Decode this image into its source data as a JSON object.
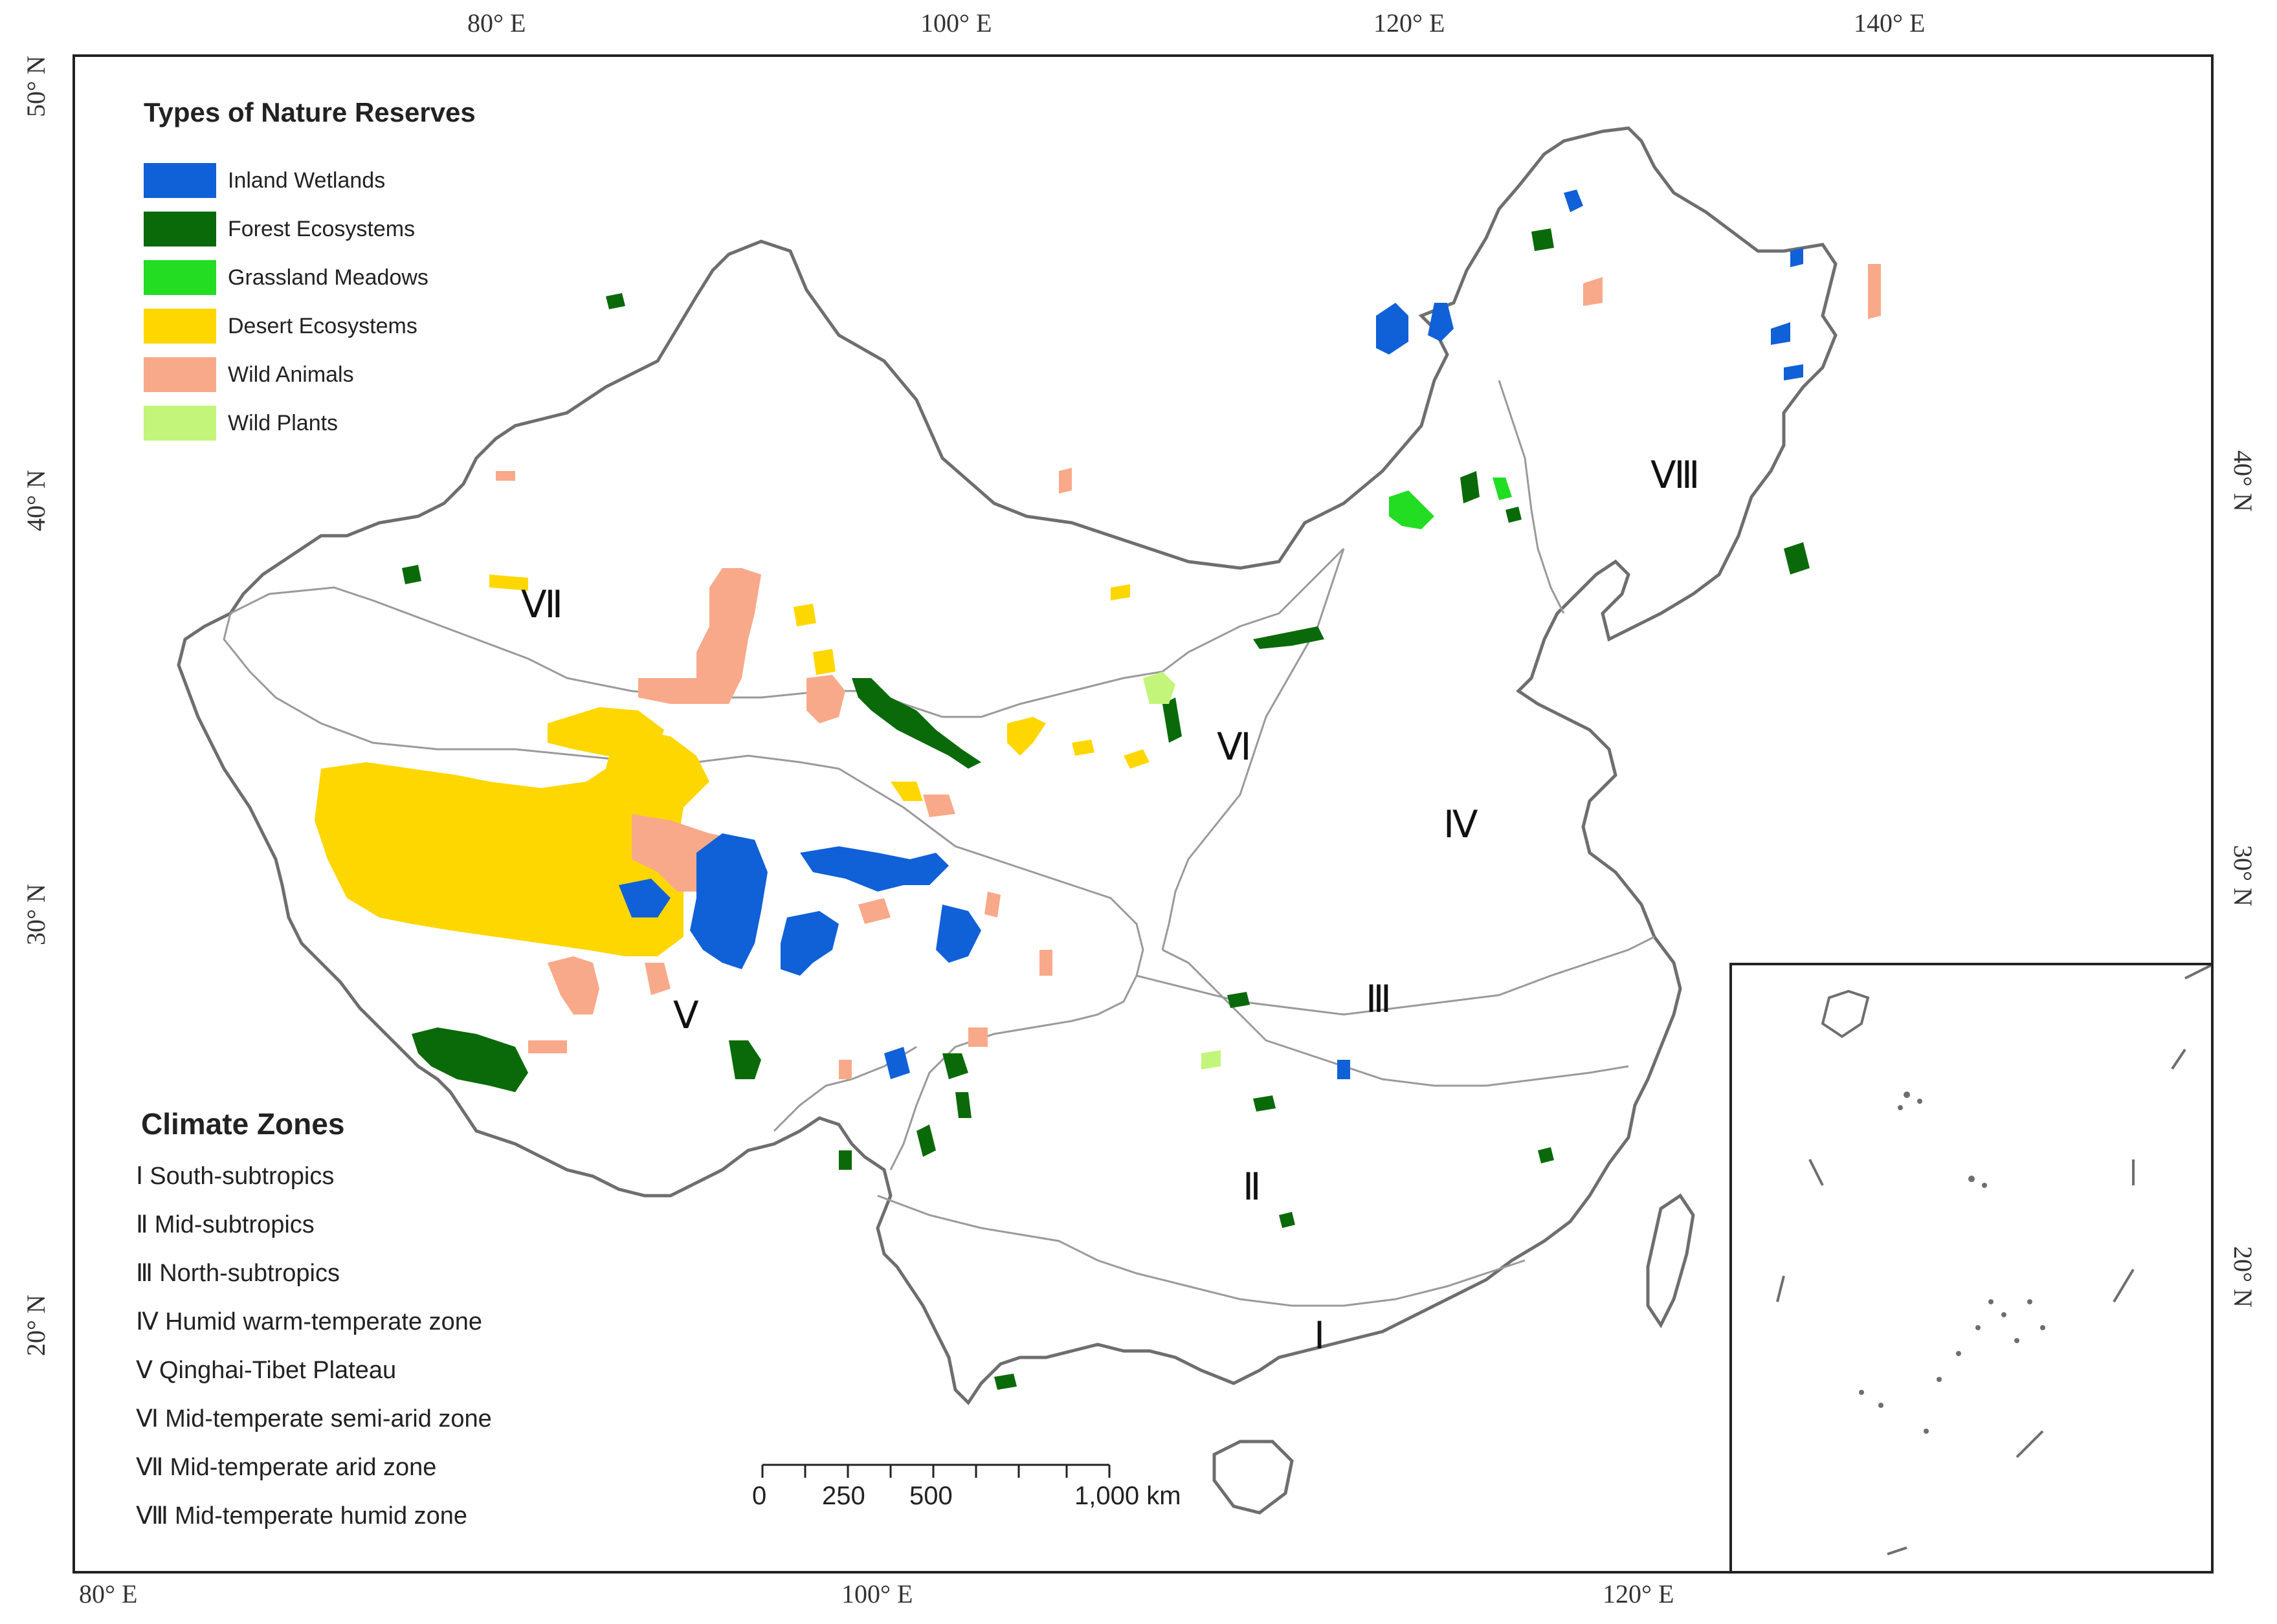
{
  "coords": {
    "top": [
      "80° E",
      "100° E",
      "120° E",
      "140° E"
    ],
    "bottom": [
      "80° E",
      "100° E",
      "120° E"
    ],
    "left": [
      "50° N",
      "40° N",
      "30° N",
      "20° N"
    ],
    "right": [
      "40° N",
      "30° N",
      "20° N"
    ]
  },
  "legend": {
    "title": "Types of Nature Reserves",
    "items": [
      {
        "label": "Inland Wetlands",
        "color": "#1060d8"
      },
      {
        "label": "Forest Ecosystems",
        "color": "#0a6a0a"
      },
      {
        "label": "Grassland Meadows",
        "color": "#22dd22"
      },
      {
        "label": "Desert Ecosystems",
        "color": "#ffd700"
      },
      {
        "label": "Wild Animals",
        "color": "#f8a98a"
      },
      {
        "label": "Wild Plants",
        "color": "#c2f57a"
      }
    ]
  },
  "climate": {
    "title": "Climate Zones",
    "items": [
      {
        "num": "Ⅰ",
        "label": "South-subtropics"
      },
      {
        "num": "Ⅱ",
        "label": "Mid-subtropics"
      },
      {
        "num": "Ⅲ",
        "label": "North-subtropics"
      },
      {
        "num": "Ⅳ",
        "label": "Humid warm-temperate  zone"
      },
      {
        "num": "Ⅴ",
        "label": "Qinghai-Tibet Plateau"
      },
      {
        "num": "Ⅵ",
        "label": "Mid-temperate semi-arid zone"
      },
      {
        "num": "Ⅶ",
        "label": "Mid-temperate arid zone"
      },
      {
        "num": "Ⅷ",
        "label": "Mid-temperate humid zone"
      }
    ]
  },
  "zone_labels": [
    "Ⅰ",
    "Ⅱ",
    "Ⅲ",
    "Ⅳ",
    "Ⅴ",
    "Ⅵ",
    "Ⅶ",
    "Ⅷ"
  ],
  "scale": {
    "labels": [
      "0",
      "250",
      "500",
      "1,000 km"
    ]
  }
}
